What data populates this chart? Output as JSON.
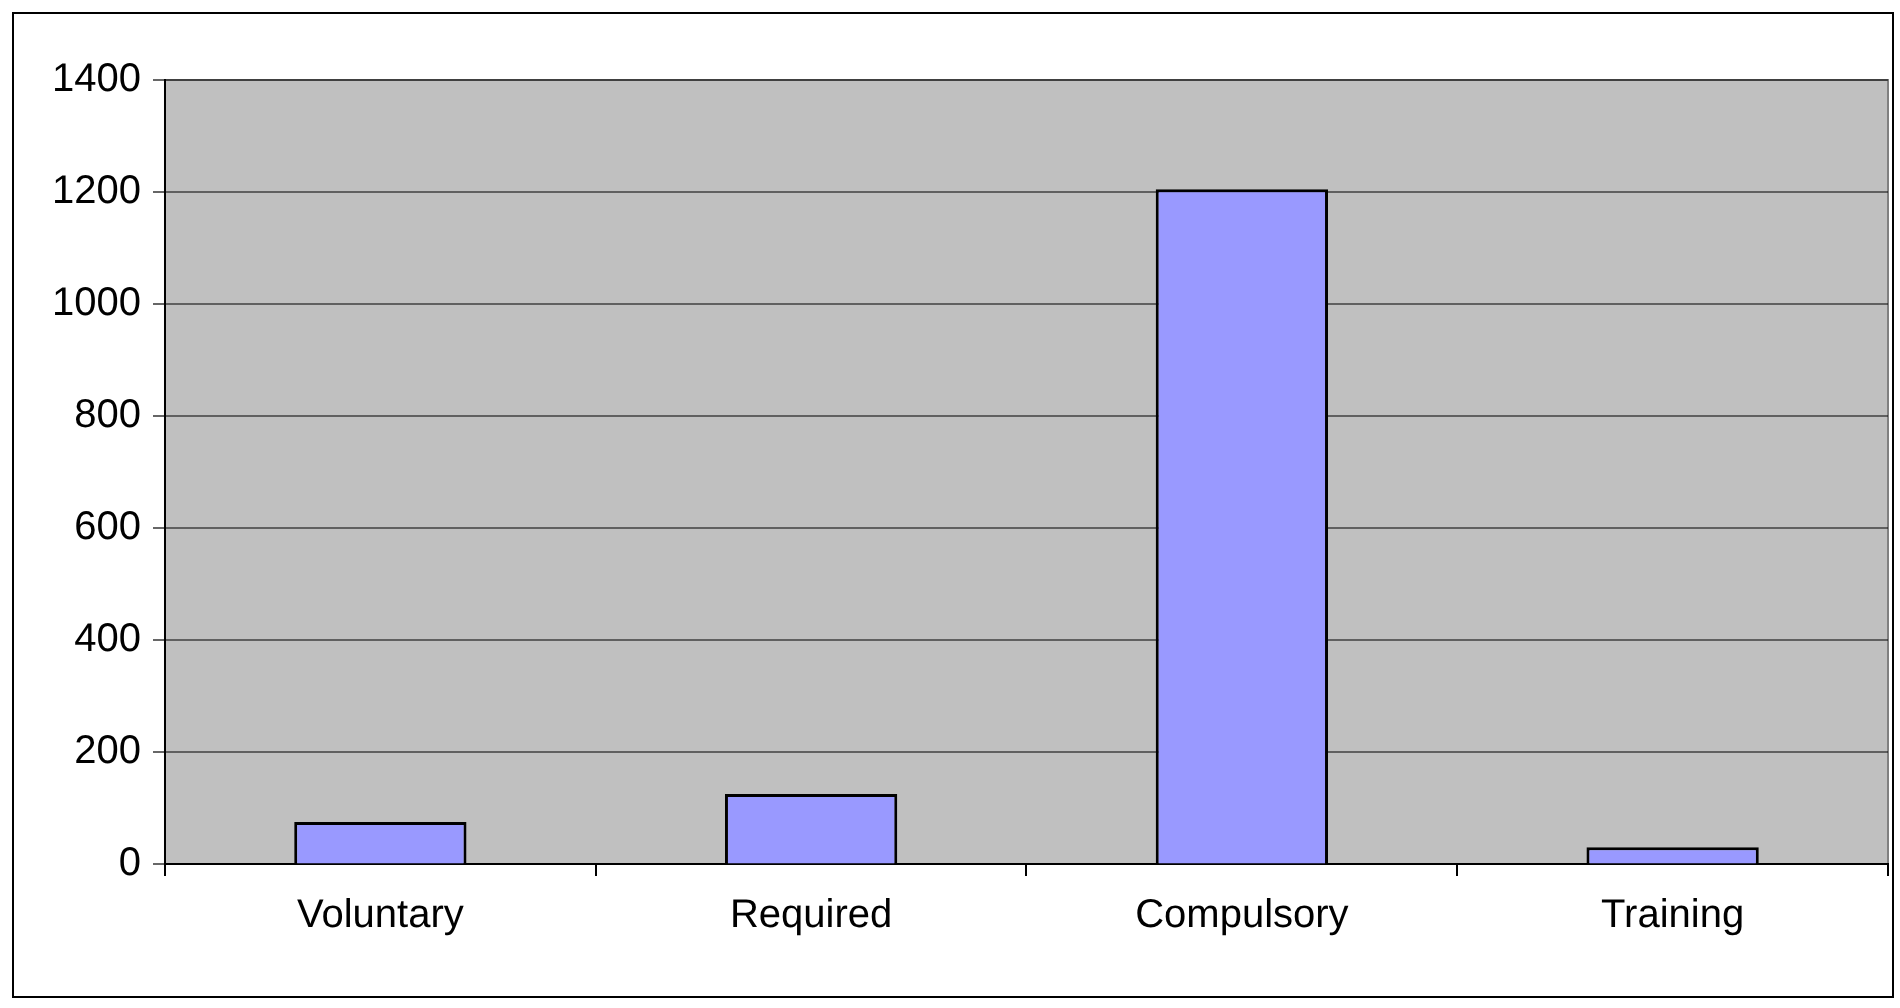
{
  "chart_data": {
    "type": "bar",
    "categories": [
      "Voluntary",
      "Required",
      "Compulsory",
      "Training"
    ],
    "values": [
      75,
      125,
      1205,
      30
    ],
    "color": "#9999ff",
    "ylim": [
      0,
      1400
    ],
    "yticks": [
      0,
      200,
      400,
      600,
      800,
      1000,
      1200,
      1400
    ],
    "grid": "y",
    "legend": false
  }
}
